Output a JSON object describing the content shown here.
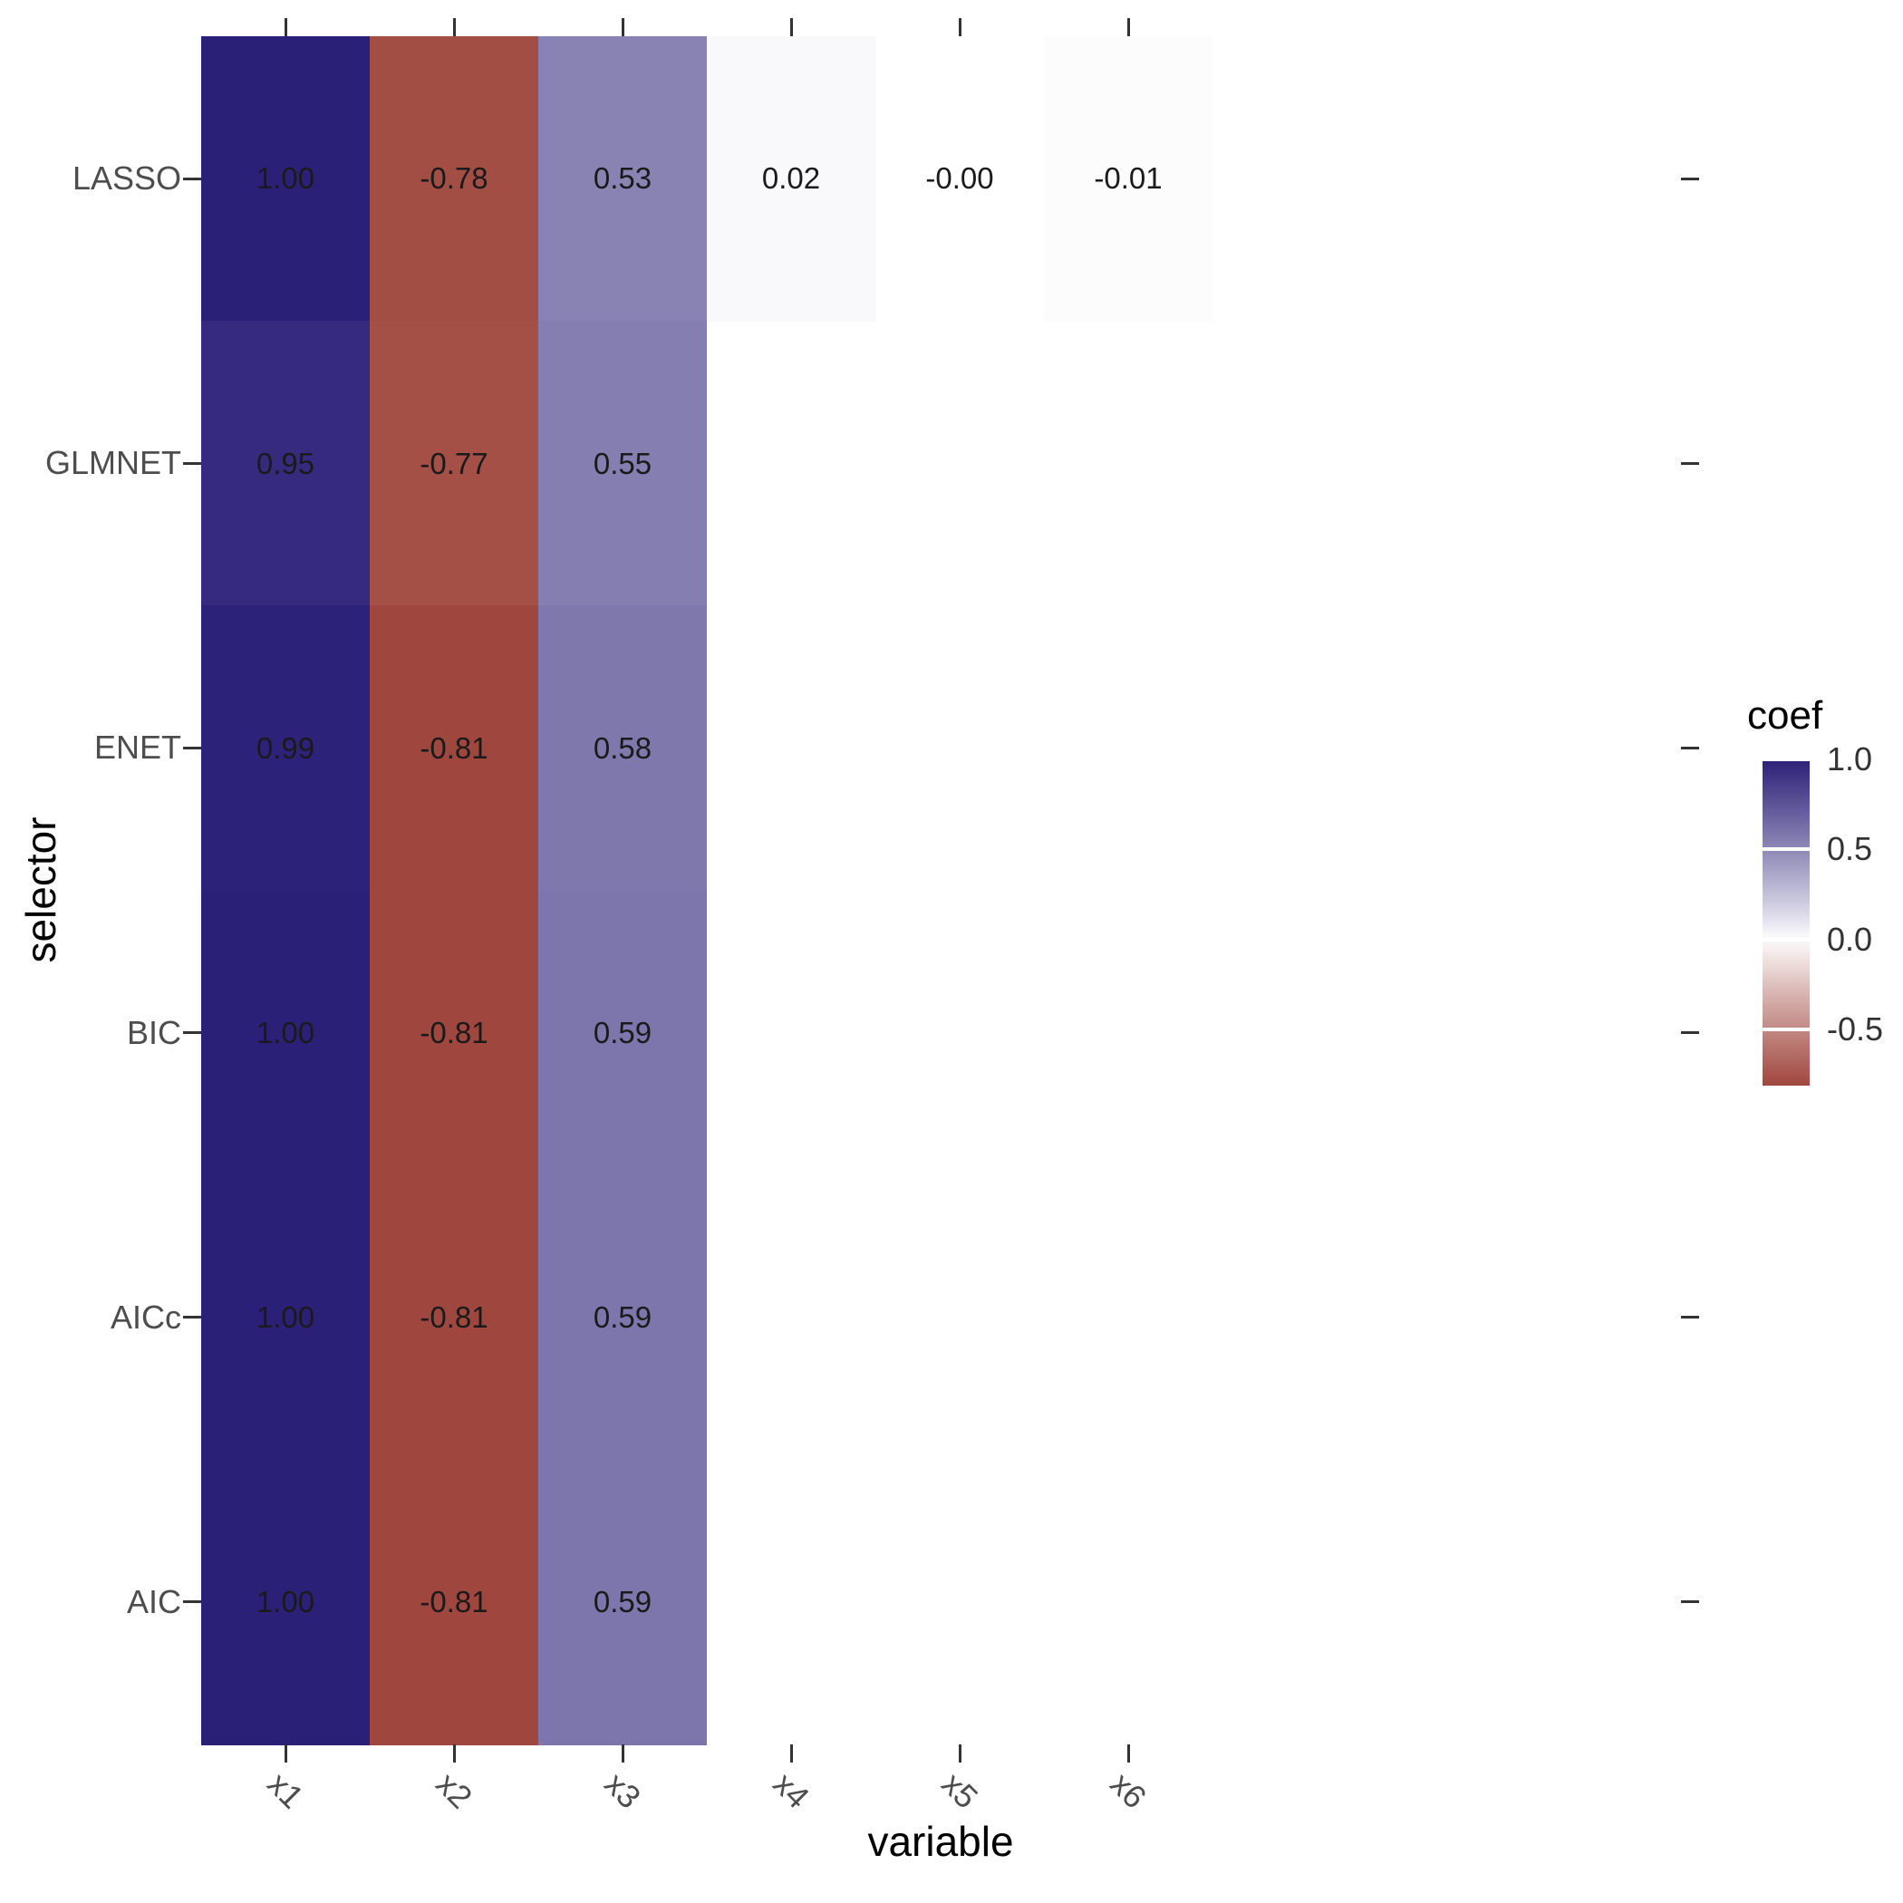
{
  "chart_data": {
    "type": "heatmap",
    "title": "",
    "xlabel": "variable",
    "ylabel": "selector",
    "x_categories": [
      "x1",
      "x2",
      "x3",
      "x4",
      "x5",
      "x6"
    ],
    "y_categories": [
      "LASSO",
      "GLMNET",
      "ENET",
      "BIC",
      "AICc",
      "AIC"
    ],
    "legend": {
      "title": "coef",
      "tick_labels": [
        "1.0",
        "0.5",
        "0.0",
        "-0.5"
      ],
      "tick_values": [
        1.0,
        0.5,
        0.0,
        -0.5
      ],
      "domain_max": 1.0,
      "domain_min": -0.81
    },
    "colors": {
      "high": "#2B2078",
      "mid": "#FFFFFF",
      "low": "#8B2015"
    },
    "cells": [
      [
        {
          "value": 1.0,
          "label": "1.00"
        },
        {
          "value": -0.78,
          "label": "-0.78"
        },
        {
          "value": 0.53,
          "label": "0.53"
        },
        {
          "value": 0.02,
          "label": "0.02"
        },
        {
          "value": 0,
          "label": "-0.00"
        },
        {
          "value": -0.01,
          "label": "-0.01"
        }
      ],
      [
        {
          "value": 0.95,
          "label": "0.95"
        },
        {
          "value": -0.77,
          "label": "-0.77"
        },
        {
          "value": 0.55,
          "label": "0.55"
        },
        null,
        null,
        null
      ],
      [
        {
          "value": 0.99,
          "label": "0.99"
        },
        {
          "value": -0.81,
          "label": "-0.81"
        },
        {
          "value": 0.58,
          "label": "0.58"
        },
        null,
        null,
        null
      ],
      [
        {
          "value": 1.0,
          "label": "1.00"
        },
        {
          "value": -0.81,
          "label": "-0.81"
        },
        {
          "value": 0.59,
          "label": "0.59"
        },
        null,
        null,
        null
      ],
      [
        {
          "value": 1.0,
          "label": "1.00"
        },
        {
          "value": -0.81,
          "label": "-0.81"
        },
        {
          "value": 0.59,
          "label": "0.59"
        },
        null,
        null,
        null
      ],
      [
        {
          "value": 1.0,
          "label": "1.00"
        },
        {
          "value": -0.81,
          "label": "-0.81"
        },
        {
          "value": 0.59,
          "label": "0.59"
        },
        null,
        null,
        null
      ]
    ]
  }
}
